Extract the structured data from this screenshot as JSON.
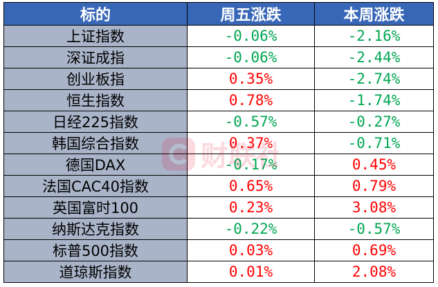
{
  "columns": [
    "标的",
    "周五涨跌",
    "本周涨跌"
  ],
  "rows": [
    {
      "name": "上证指数",
      "fri": "-0.06%",
      "fri_dir": "down",
      "week": "-2.16%",
      "week_dir": "down"
    },
    {
      "name": "深证成指",
      "fri": "-0.06%",
      "fri_dir": "down",
      "week": "-2.44%",
      "week_dir": "down"
    },
    {
      "name": "创业板指",
      "fri": "0.35%",
      "fri_dir": "up",
      "week": "-2.74%",
      "week_dir": "down"
    },
    {
      "name": "恒生指数",
      "fri": "0.78%",
      "fri_dir": "up",
      "week": "-1.74%",
      "week_dir": "down"
    },
    {
      "name": "日经225指数",
      "fri": "-0.57%",
      "fri_dir": "down",
      "week": "-0.27%",
      "week_dir": "down"
    },
    {
      "name": "韩国综合指数",
      "fri": "0.37%",
      "fri_dir": "up",
      "week": "-0.71%",
      "week_dir": "down"
    },
    {
      "name": "德国DAX",
      "fri": "-0.17%",
      "fri_dir": "down",
      "week": "0.45%",
      "week_dir": "up"
    },
    {
      "name": "法国CAC40指数",
      "fri": "0.65%",
      "fri_dir": "up",
      "week": "0.79%",
      "week_dir": "up"
    },
    {
      "name": "英国富时100",
      "fri": "0.23%",
      "fri_dir": "up",
      "week": "3.08%",
      "week_dir": "up"
    },
    {
      "name": "纳斯达克指数",
      "fri": "-0.22%",
      "fri_dir": "down",
      "week": "-0.57%",
      "week_dir": "down"
    },
    {
      "name": "标普500指数",
      "fri": "0.03%",
      "fri_dir": "up",
      "week": "0.69%",
      "week_dir": "up"
    },
    {
      "name": "道琼斯指数",
      "fri": "0.01%",
      "fri_dir": "up",
      "week": "2.08%",
      "week_dir": "up"
    }
  ],
  "colors": {
    "header_bg": "#3867b8",
    "header_text": "#ffffff",
    "name_bg": "#a9b4c9",
    "up": "#ff0000",
    "down": "#00a651",
    "watermark": "#e4002b"
  },
  "watermark": {
    "text": "财联社",
    "icon": "cls-logo-icon"
  }
}
